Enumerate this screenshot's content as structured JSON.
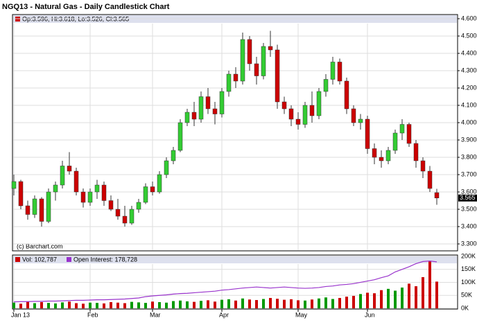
{
  "chart_data": [
    {
      "type": "candlestick",
      "title": "NGQ13 - Natural Gas - Daily Candlestick Chart",
      "info": "Op:3.596, Hi:3.618, Lo:3.526, Cl:3.565",
      "credit": "(c) Barchart.com",
      "up_color": "#33cc33",
      "down_color": "#cc0000",
      "grid": true,
      "ylim": [
        3.26,
        4.62
      ],
      "yticks": [
        {
          "value": 3.3,
          "label": "3.300"
        },
        {
          "value": 3.4,
          "label": "3.400"
        },
        {
          "value": 3.5,
          "label": "3.500"
        },
        {
          "value": 3.6,
          "label": "3.600"
        },
        {
          "value": 3.7,
          "label": "3.700"
        },
        {
          "value": 3.8,
          "label": "3.800"
        },
        {
          "value": 3.9,
          "label": "3.900"
        },
        {
          "value": 4.0,
          "label": "4.000"
        },
        {
          "value": 4.1,
          "label": "4.100"
        },
        {
          "value": 4.2,
          "label": "4.200"
        },
        {
          "value": 4.3,
          "label": "4.300"
        },
        {
          "value": 4.4,
          "label": "4.400"
        },
        {
          "value": 4.5,
          "label": "4.500"
        },
        {
          "value": 4.6,
          "label": "4.600"
        }
      ],
      "open": [
        3.62,
        3.66,
        3.52,
        3.47,
        3.56,
        3.43,
        3.6,
        3.64,
        3.75,
        3.72,
        3.6,
        3.54,
        3.6,
        3.64,
        3.55,
        3.5,
        3.46,
        3.42,
        3.5,
        3.54,
        3.63,
        3.6,
        3.7,
        3.78,
        3.84,
        4.0,
        4.06,
        4.02,
        4.15,
        4.08,
        4.05,
        4.18,
        4.28,
        4.24,
        4.48,
        4.34,
        4.27,
        4.44,
        4.42,
        4.12,
        4.08,
        4.02,
        3.99,
        4.1,
        4.04,
        4.18,
        4.25,
        4.35,
        4.24,
        4.08,
        4.0,
        4.02,
        3.85,
        3.8,
        3.78,
        3.84,
        3.94,
        3.99,
        3.88,
        3.78,
        3.72,
        3.596
      ],
      "high": [
        3.7,
        3.67,
        3.55,
        3.58,
        3.57,
        3.62,
        3.66,
        3.78,
        3.83,
        3.74,
        3.62,
        3.62,
        3.67,
        3.66,
        3.58,
        3.56,
        3.52,
        3.52,
        3.56,
        3.65,
        3.66,
        3.72,
        3.8,
        3.86,
        4.02,
        4.08,
        4.12,
        4.18,
        4.2,
        4.12,
        4.2,
        4.3,
        4.32,
        4.52,
        4.5,
        4.38,
        4.46,
        4.53,
        4.45,
        4.15,
        4.1,
        4.06,
        4.12,
        4.18,
        4.2,
        4.28,
        4.38,
        4.37,
        4.26,
        4.1,
        4.05,
        4.04,
        3.88,
        3.84,
        3.86,
        3.96,
        4.02,
        4.0,
        3.9,
        3.8,
        3.75,
        3.618
      ],
      "low": [
        3.58,
        3.5,
        3.44,
        3.45,
        3.4,
        3.42,
        3.55,
        3.62,
        3.7,
        3.58,
        3.51,
        3.52,
        3.56,
        3.52,
        3.49,
        3.44,
        3.4,
        3.41,
        3.48,
        3.53,
        3.58,
        3.59,
        3.68,
        3.76,
        3.83,
        3.98,
        3.98,
        4.0,
        4.05,
        3.99,
        4.03,
        4.15,
        4.2,
        4.22,
        4.3,
        4.22,
        4.25,
        4.38,
        4.08,
        4.05,
        3.98,
        3.96,
        3.97,
        4.0,
        4.02,
        4.15,
        4.22,
        4.22,
        4.05,
        3.98,
        3.96,
        3.82,
        3.76,
        3.74,
        3.76,
        3.82,
        3.9,
        3.86,
        3.74,
        3.68,
        3.6,
        3.526
      ],
      "close": [
        3.66,
        3.52,
        3.47,
        3.56,
        3.43,
        3.6,
        3.64,
        3.75,
        3.72,
        3.6,
        3.54,
        3.6,
        3.64,
        3.55,
        3.5,
        3.46,
        3.42,
        3.5,
        3.54,
        3.63,
        3.6,
        3.7,
        3.78,
        3.84,
        4.0,
        4.06,
        4.02,
        4.15,
        4.08,
        4.05,
        4.18,
        4.28,
        4.24,
        4.48,
        4.34,
        4.27,
        4.44,
        4.42,
        4.12,
        4.08,
        4.02,
        3.99,
        4.1,
        4.04,
        4.18,
        4.25,
        4.35,
        4.24,
        4.08,
        4.0,
        4.02,
        3.85,
        3.8,
        3.78,
        3.84,
        3.94,
        3.99,
        3.88,
        3.78,
        3.72,
        3.62,
        3.565
      ]
    },
    {
      "type": "volume",
      "categories": [
        "Jan 13",
        null,
        null,
        null,
        null,
        null,
        null,
        null,
        null,
        null,
        null,
        "Feb",
        null,
        null,
        null,
        null,
        null,
        null,
        null,
        null,
        "Mar",
        null,
        null,
        null,
        null,
        null,
        null,
        null,
        null,
        null,
        "Apr",
        null,
        null,
        null,
        null,
        null,
        null,
        null,
        null,
        null,
        null,
        "May",
        null,
        null,
        null,
        null,
        null,
        null,
        null,
        null,
        null,
        "Jun",
        null,
        null,
        null,
        null,
        null,
        null,
        null,
        null,
        null,
        null
      ],
      "ylim": [
        0,
        205000
      ],
      "yticks": [
        {
          "value": 0,
          "label": "0K"
        },
        {
          "value": 50000,
          "label": "50K"
        },
        {
          "value": 100000,
          "label": "100K"
        },
        {
          "value": 150000,
          "label": "150K"
        },
        {
          "value": 200000,
          "label": "200K"
        }
      ],
      "series": [
        {
          "name": "Vol: 102,787",
          "color": "#cc0000",
          "up_color": "#009900",
          "values": [
            22000,
            18000,
            25000,
            20000,
            24000,
            21000,
            19000,
            23000,
            26000,
            20000,
            18000,
            22000,
            21000,
            19000,
            24000,
            22000,
            20000,
            25000,
            23000,
            21000,
            26000,
            24000,
            22000,
            28000,
            30000,
            27000,
            25000,
            29000,
            31000,
            26000,
            33000,
            35000,
            30000,
            38000,
            34000,
            32000,
            36000,
            40000,
            37000,
            33000,
            35000,
            31000,
            30000,
            34000,
            38000,
            42000,
            36000,
            40000,
            45000,
            48000,
            55000,
            60000,
            58000,
            70000,
            75000,
            68000,
            80000,
            95000,
            85000,
            120000,
            180000,
            102787
          ]
        },
        {
          "name": "Open Interest: 178,728",
          "color": "#9933cc",
          "values": [
            25000,
            26000,
            26000,
            27000,
            27000,
            28000,
            28000,
            29000,
            30000,
            31000,
            31000,
            32000,
            33000,
            33000,
            34000,
            35000,
            36000,
            38000,
            40000,
            45000,
            48000,
            50000,
            52000,
            55000,
            57000,
            58000,
            60000,
            62000,
            64000,
            66000,
            70000,
            72000,
            75000,
            78000,
            80000,
            82000,
            80000,
            78000,
            80000,
            82000,
            80000,
            78000,
            77000,
            78000,
            80000,
            84000,
            86000,
            90000,
            92000,
            95000,
            100000,
            105000,
            110000,
            118000,
            125000,
            140000,
            150000,
            160000,
            172000,
            180000,
            182000,
            178728
          ]
        }
      ]
    }
  ]
}
